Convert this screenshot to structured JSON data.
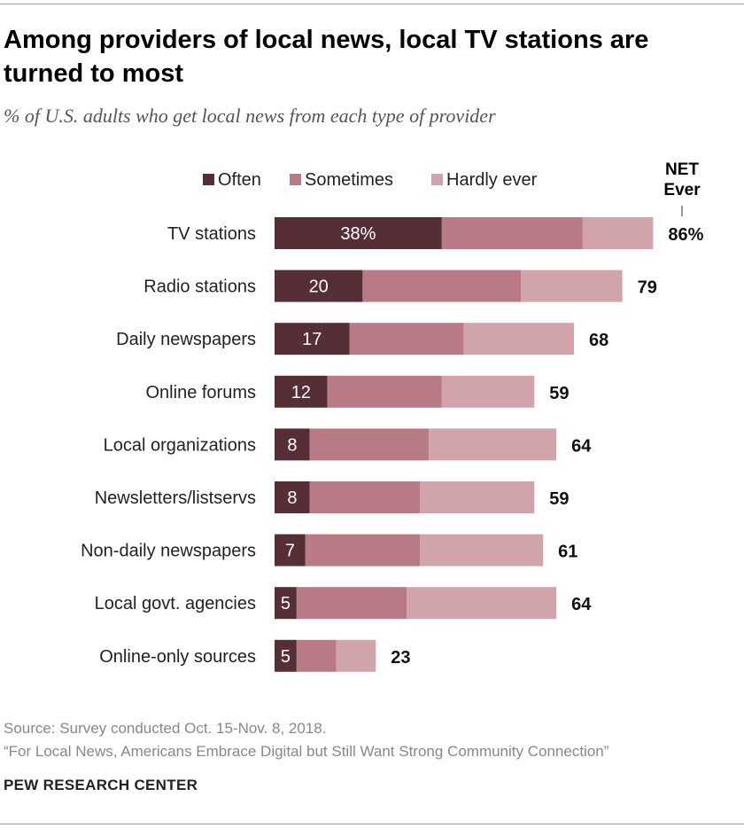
{
  "title": "Among providers of local news, local TV stations are turned to most",
  "subtitle": "% of U.S. adults who get local news from each type of provider",
  "source": "Source: Survey conducted Oct. 15-Nov. 8, 2018.",
  "report": "“For Local News, Americans Embrace Digital but Still Want Strong Community Connection”",
  "organization": "PEW RESEARCH CENTER",
  "chart_data": {
    "type": "bar",
    "orientation": "horizontal",
    "stacked": true,
    "net_header": "NET Ever",
    "net_header_lines": [
      "NET",
      "Ever"
    ],
    "legend_placement": "top",
    "categories": [
      "TV stations",
      "Radio stations",
      "Daily newspapers",
      "Online forums",
      "Local organizations",
      "Newsletters/listservs",
      "Non-daily newspapers",
      "Local govt. agencies",
      "Online-only sources"
    ],
    "series": [
      {
        "name": "Often",
        "color": "#562e35",
        "values": [
          38,
          20,
          17,
          12,
          8,
          8,
          7,
          5,
          5
        ]
      },
      {
        "name": "Sometimes",
        "color": "#b87a84",
        "values": [
          32,
          36,
          26,
          26,
          27,
          25,
          26,
          25,
          9
        ]
      },
      {
        "name": "Hardly ever",
        "color": "#d1a3aa",
        "values": [
          16,
          23,
          25,
          21,
          29,
          26,
          28,
          34,
          9
        ]
      }
    ],
    "often_labels": [
      "38%",
      "20",
      "17",
      "12",
      "8",
      "8",
      "7",
      "5",
      "5"
    ],
    "net_labels": [
      "86%",
      "79",
      "68",
      "59",
      "64",
      "59",
      "61",
      "64",
      "23"
    ],
    "net": [
      86,
      79,
      68,
      59,
      64,
      59,
      61,
      64,
      23
    ],
    "xlim": [
      0,
      100
    ],
    "grid": false
  }
}
